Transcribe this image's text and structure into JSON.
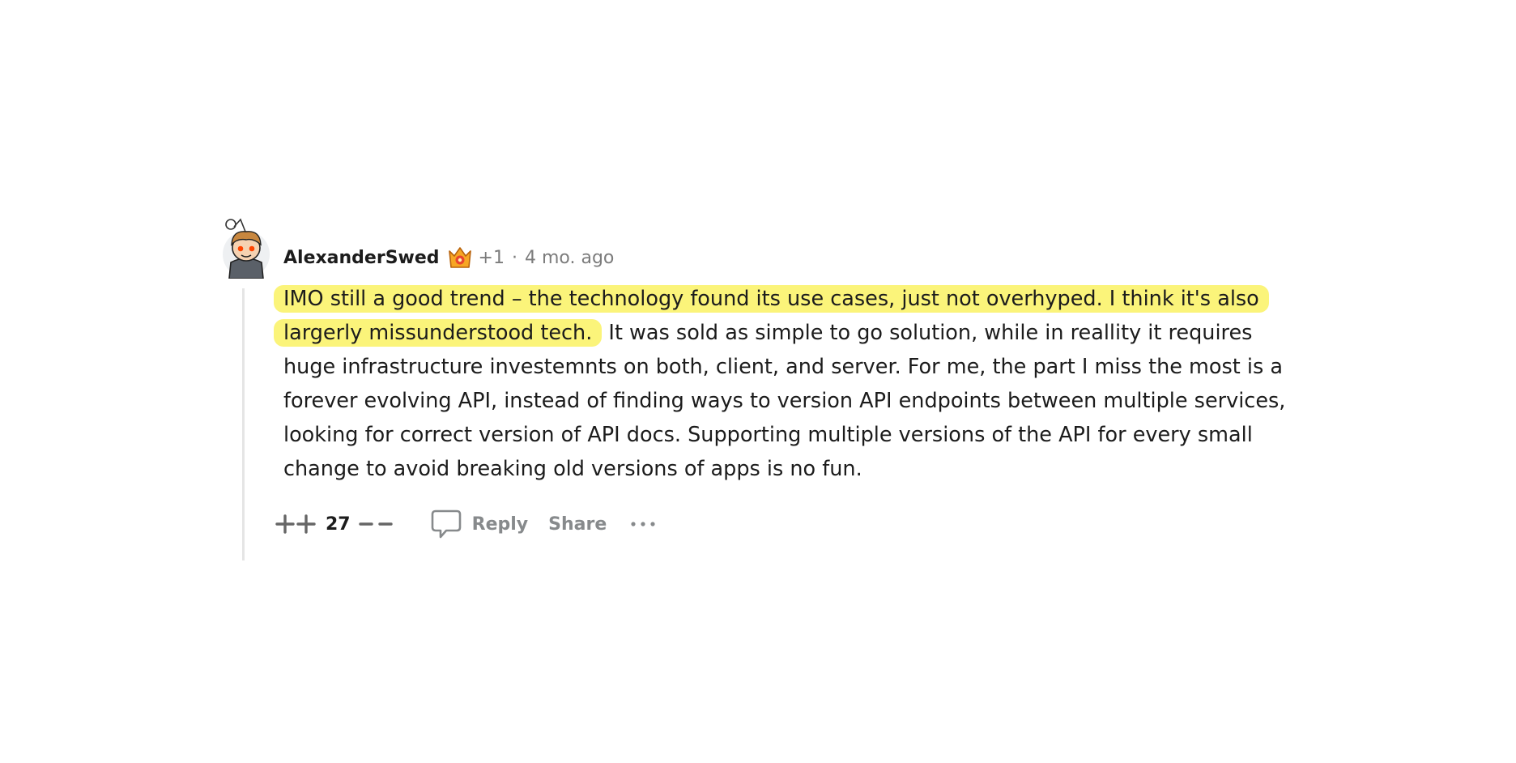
{
  "comment": {
    "username": "AlexanderSwed",
    "flair_icon": "crown-badge-icon",
    "karma": "+1",
    "separator": "·",
    "time": "4 mo. ago",
    "body_highlighted": "IMO still a good trend – the technology found its use cases, just not overhyped. I think it's also largerly missunderstood tech.",
    "body_rest": " It was sold as simple to go solution, while in reallity it requires huge infrastructure investemnts on both, client, and server. For me, the part I miss the most is a forever evolving API, instead of finding ways to version API endpoints between multiple services, looking for correct version of API docs. Supporting multiple versions of the API for every small change to avoid breaking old versions of apps is no fun.",
    "score": "27",
    "reply_label": "Reply",
    "share_label": "Share"
  },
  "colors": {
    "highlight": "#fbf47a",
    "muted": "#7c7c7c",
    "text": "#1c1c1c"
  },
  "icons": {
    "upvote": "double-plus-icon",
    "downvote": "double-minus-icon",
    "reply": "speech-bubble-icon",
    "more": "ellipsis-icon"
  }
}
